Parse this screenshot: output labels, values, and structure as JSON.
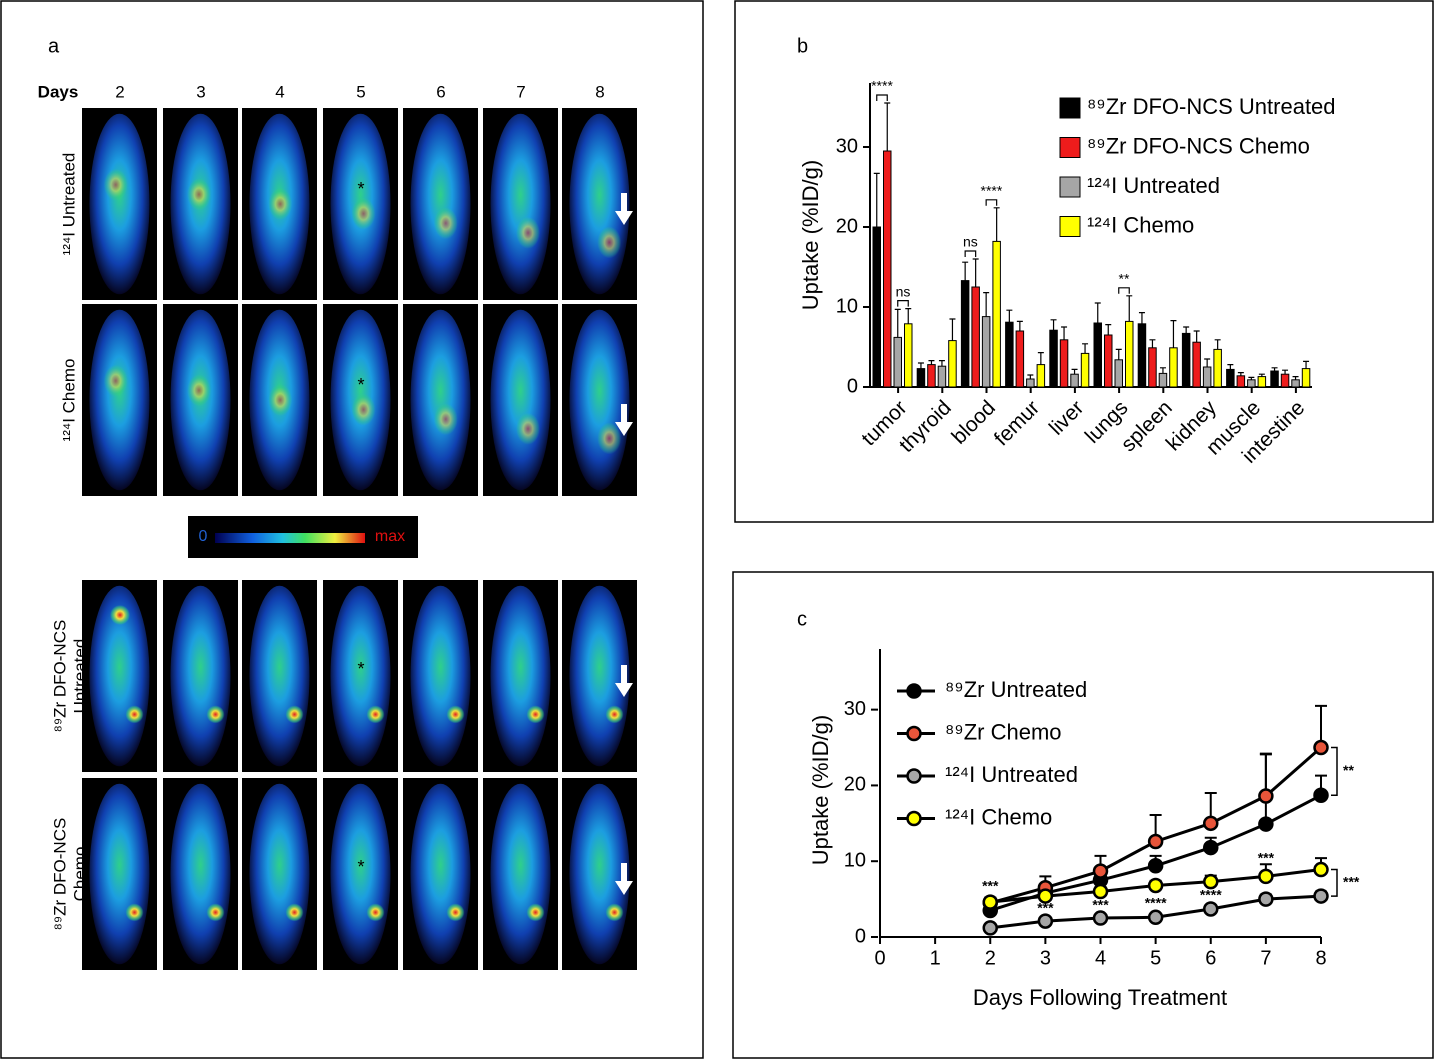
{
  "panel_a": {
    "letter": "a",
    "days_label": "Days",
    "days": [
      "2",
      "3",
      "4",
      "5",
      "6",
      "7",
      "8"
    ],
    "row_labels": [
      [
        "¹²⁴I Untreated"
      ],
      [
        "¹²⁴I Chemo"
      ],
      [
        "⁸⁹Zr DFO-NCS",
        "Untreated"
      ],
      [
        "⁸⁹Zr DFO-NCS",
        "Chemo"
      ]
    ],
    "asterisks": [
      "*",
      "*",
      "*",
      "*"
    ],
    "colorbar_min": "0",
    "colorbar_max": "max"
  },
  "chart_data": [
    {
      "type": "bar",
      "panel": "b",
      "y_label": "Uptake (%ID/g)",
      "categories": [
        "tumor",
        "thyroid",
        "blood",
        "femur",
        "liver",
        "lungs",
        "spleen",
        "kidney",
        "muscle",
        "intestine"
      ],
      "series": [
        {
          "name": "⁸⁹Zr DFO-NCS Untreated",
          "color": "#000000",
          "values": [
            20,
            2.3,
            13.3,
            8.1,
            7.1,
            8,
            7.9,
            6.7,
            2.2,
            2
          ],
          "errors": [
            6.7,
            0.7,
            2.3,
            1.5,
            1.3,
            2.5,
            1.4,
            0.8,
            0.6,
            0.4
          ]
        },
        {
          "name": "⁸⁹Zr DFO-NCS Chemo",
          "color": "#ee1c1c",
          "values": [
            29.5,
            2.8,
            12.5,
            7,
            5.9,
            6.5,
            4.9,
            5.6,
            1.4,
            1.6
          ],
          "errors": [
            6,
            0.5,
            3.5,
            1.2,
            1.6,
            1.3,
            1,
            1.4,
            0.4,
            0.5
          ]
        },
        {
          "name": "¹²⁴I Untreated",
          "color": "#a6a6a6",
          "values": [
            6.2,
            2.6,
            8.8,
            1,
            1.6,
            3.4,
            1.7,
            2.5,
            0.9,
            0.9
          ],
          "errors": [
            3.5,
            0.7,
            3,
            0.5,
            0.6,
            1.3,
            0.7,
            1,
            0.3,
            0.4
          ]
        },
        {
          "name": "¹²⁴I Chemo",
          "color": "#ffff00",
          "values": [
            7.9,
            5.8,
            18.2,
            2.8,
            4.2,
            8.2,
            4.9,
            4.7,
            1.3,
            2.3
          ],
          "errors": [
            1.9,
            2.7,
            4.2,
            1.5,
            1.2,
            3.2,
            3.4,
            1.2,
            0.3,
            0.9
          ]
        }
      ],
      "annotations": [
        "****",
        "ns",
        "ns",
        "****",
        "**"
      ],
      "ylim": [
        0,
        38
      ],
      "yticks": [
        0,
        10,
        20,
        30
      ]
    },
    {
      "type": "line",
      "panel": "c",
      "y_label": "Uptake (%ID/g)",
      "x_label": "Days Following Treatment",
      "x": [
        2,
        3,
        4,
        5,
        6,
        7,
        8
      ],
      "series": [
        {
          "name": "⁸⁹Zr Untreated",
          "color": "#000000",
          "values": [
            3.5,
            5.8,
            7.5,
            9.4,
            11.8,
            14.9,
            18.7
          ],
          "errors": [
            0.5,
            0.7,
            1,
            1.3,
            1.3,
            9.3,
            2.6
          ]
        },
        {
          "name": "⁸⁹Zr Chemo",
          "color": "#e8553a",
          "values": [
            4.5,
            6.5,
            8.7,
            12.6,
            15,
            18.6,
            25
          ],
          "errors": [
            0.5,
            1.5,
            2,
            3.5,
            4,
            5.5,
            5.5
          ]
        },
        {
          "name": "¹²⁴I Untreated",
          "color": "#a6a6a6",
          "values": [
            1.2,
            2.1,
            2.5,
            2.6,
            3.7,
            5,
            5.4
          ],
          "errors": [
            0.2,
            0.3,
            0.3,
            0.4,
            0.5,
            0.6,
            0.6
          ]
        },
        {
          "name": "¹²⁴I Chemo",
          "color": "#ffff00",
          "values": [
            4.6,
            5.4,
            6,
            6.8,
            7.3,
            8,
            8.9
          ],
          "errors": [
            0.6,
            0.6,
            0.6,
            0.6,
            0.8,
            1.6,
            1.5
          ]
        }
      ],
      "annotations": [
        "***",
        "***",
        "***",
        "****",
        "****",
        "***",
        "**",
        "***"
      ],
      "xlim": [
        0,
        8
      ],
      "xticks": [
        0,
        1,
        2,
        3,
        4,
        5,
        6,
        7,
        8
      ],
      "ylim": [
        0,
        38
      ],
      "yticks": [
        0,
        10,
        20,
        30
      ]
    }
  ]
}
